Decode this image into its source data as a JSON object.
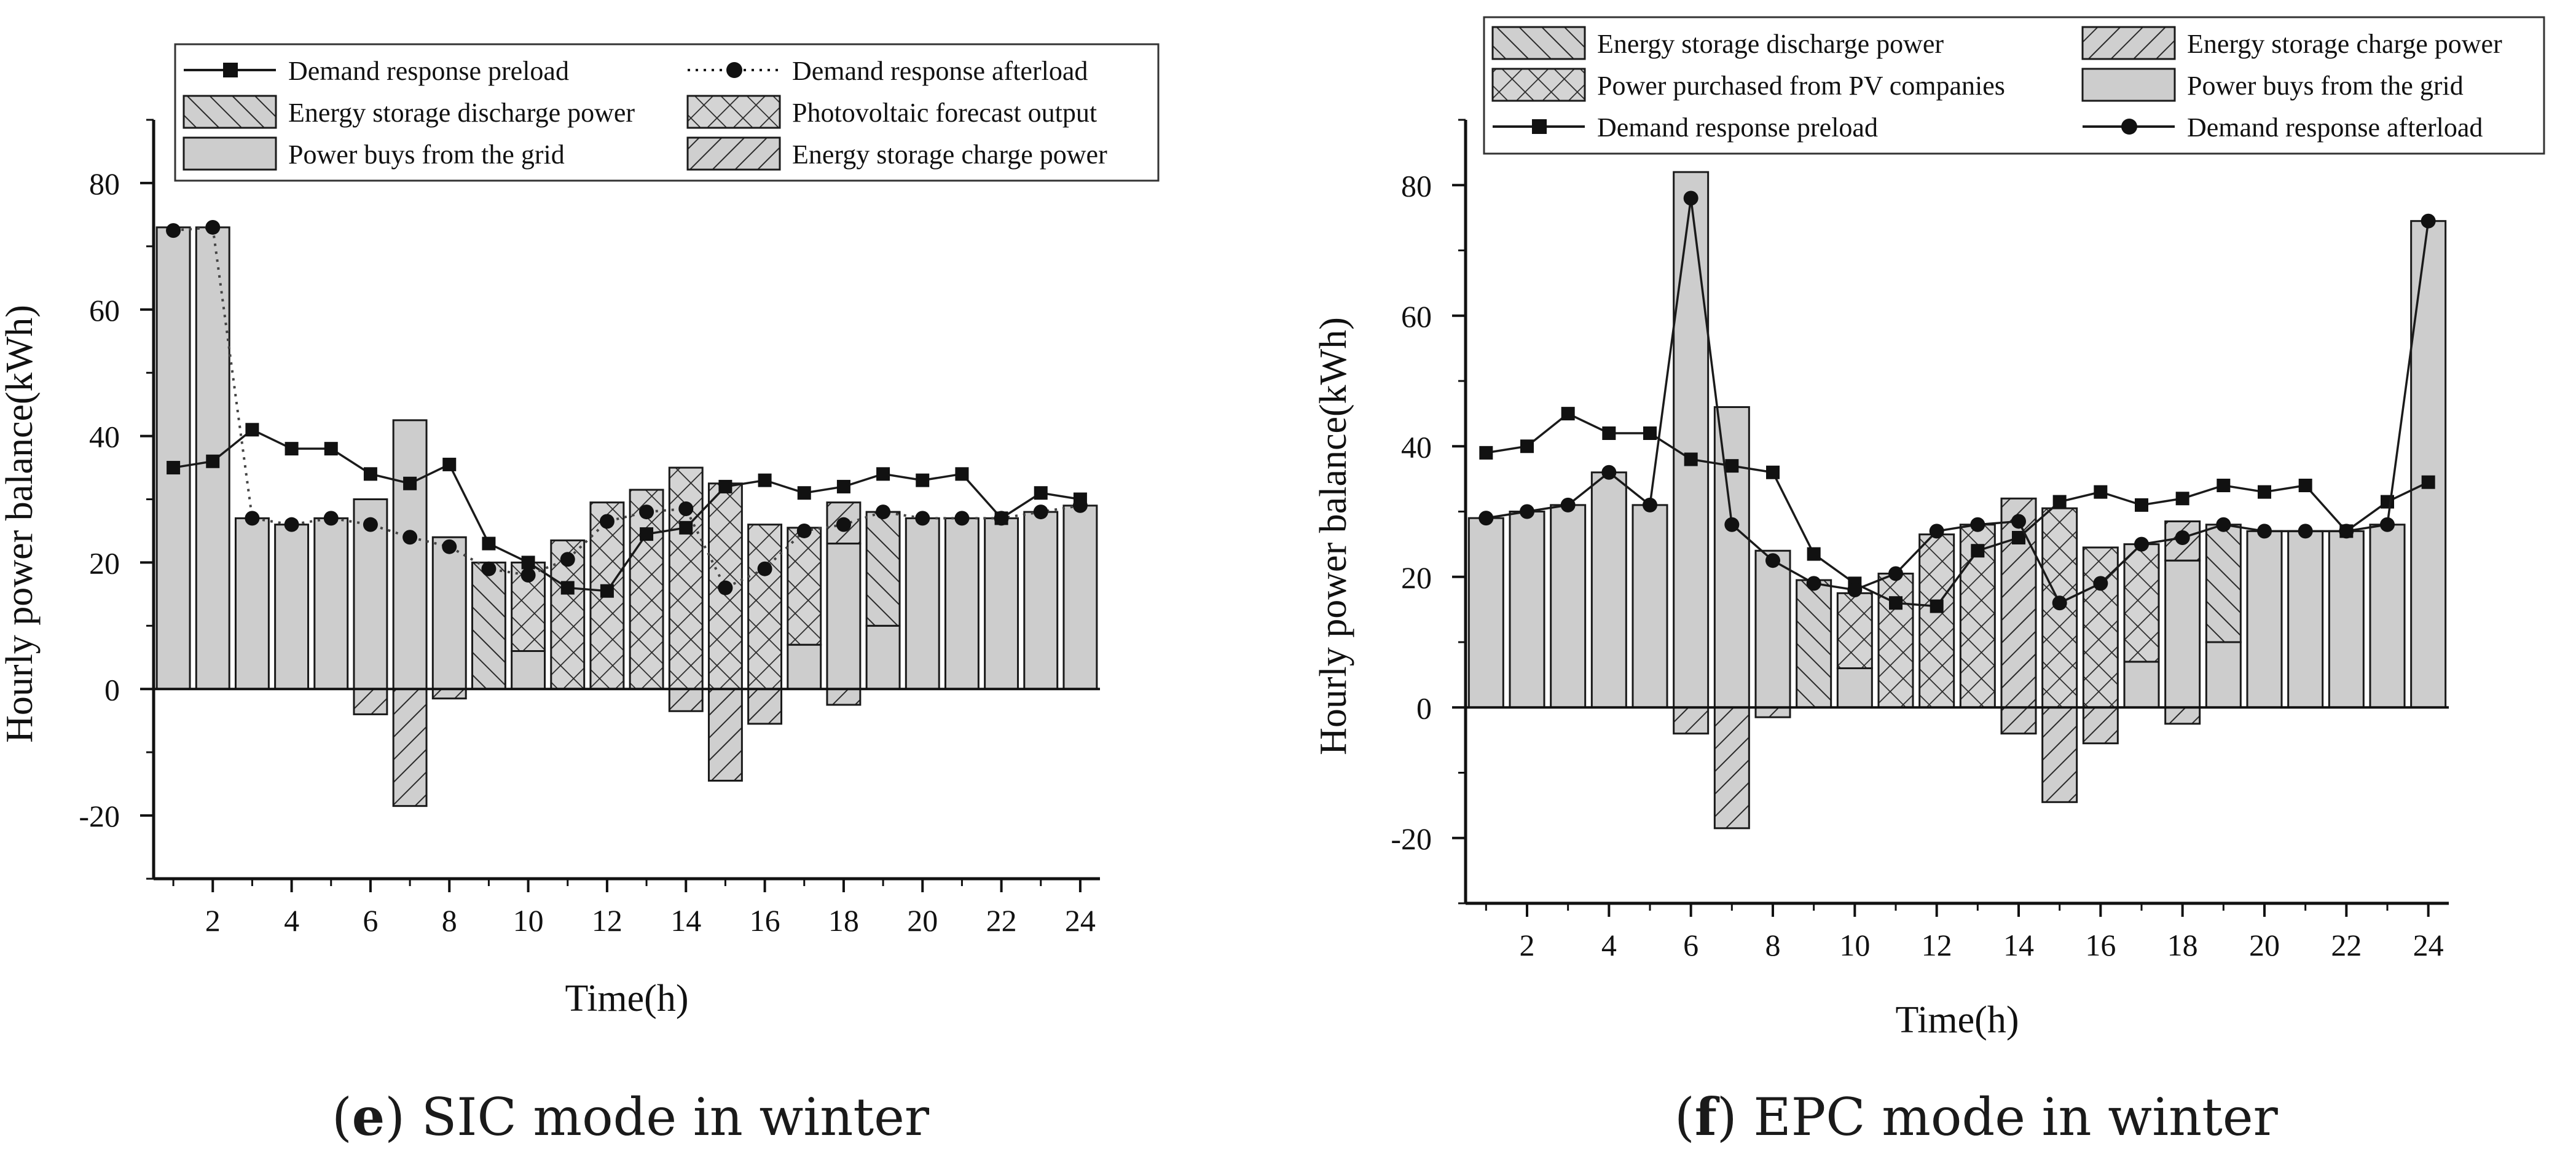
{
  "chart_data": [
    {
      "type": "bar",
      "panel": "left",
      "caption_letter": "e",
      "caption_text": "SIC mode in winter",
      "xlabel": "Time(h)",
      "ylabel": "Hourly power balance(kWh)",
      "xlim": [
        0.5,
        24.5
      ],
      "ylim": [
        -30,
        90
      ],
      "xticks": [
        2,
        4,
        6,
        8,
        10,
        12,
        14,
        16,
        18,
        20,
        22,
        24
      ],
      "yticks": [
        -20,
        0,
        20,
        40,
        60,
        80
      ],
      "legend_position": "top",
      "legend_columns": 2,
      "x": [
        1,
        2,
        3,
        4,
        5,
        6,
        7,
        8,
        9,
        10,
        11,
        12,
        13,
        14,
        15,
        16,
        17,
        18,
        19,
        20,
        21,
        22,
        23,
        24
      ],
      "legend": [
        {
          "key": "preload",
          "label": "Demand response preload"
        },
        {
          "key": "afterload",
          "label": "Demand response afterload"
        },
        {
          "key": "discharge",
          "label": "Energy storage discharge power"
        },
        {
          "key": "pv",
          "label": "Photovoltaic forecast output"
        },
        {
          "key": "grid",
          "label": "Power buys from the grid"
        },
        {
          "key": "charge",
          "label": "Energy storage charge power"
        }
      ],
      "series": [
        {
          "key": "grid",
          "name": "Power buys from the grid",
          "kind": "bar",
          "values": [
            73,
            73,
            27,
            26,
            27,
            30,
            42.5,
            24,
            0,
            6,
            0,
            0,
            0,
            0,
            0,
            0,
            7,
            23,
            10,
            27,
            27,
            27,
            28,
            29
          ]
        },
        {
          "key": "pv",
          "name": "Photovoltaic forecast output",
          "kind": "bar",
          "values": [
            0,
            0,
            0,
            0,
            0,
            0,
            0,
            0,
            0,
            14,
            23.5,
            29.5,
            31.5,
            35,
            32.5,
            26,
            18.5,
            0,
            0,
            0,
            0,
            0,
            0,
            0
          ]
        },
        {
          "key": "discharge",
          "name": "Energy storage discharge power",
          "kind": "bar",
          "values": [
            0,
            0,
            0,
            0,
            0,
            0,
            0,
            0,
            20,
            0,
            0,
            0,
            0,
            0,
            0,
            0,
            0,
            0,
            18,
            0,
            0,
            0,
            0,
            0
          ]
        },
        {
          "key": "charge_up",
          "name": "Energy storage charge power",
          "kind": "bar",
          "values": [
            0,
            0,
            0,
            0,
            0,
            0,
            0,
            0,
            0,
            0,
            0,
            0,
            0,
            0,
            0,
            0,
            0,
            6.5,
            0,
            0,
            0,
            0,
            0,
            0
          ]
        },
        {
          "key": "charge",
          "name": "Energy storage charge power",
          "kind": "bar",
          "values": [
            0,
            0,
            0,
            0,
            0,
            -4,
            -18.5,
            -1.5,
            0,
            0,
            0,
            0,
            0,
            -3.5,
            -14.5,
            -5.5,
            0,
            -2.5,
            0,
            0,
            0,
            0,
            0,
            0
          ]
        },
        {
          "key": "preload",
          "name": "Demand response preload",
          "kind": "line",
          "values": [
            35,
            36,
            41,
            38,
            38,
            34,
            32.5,
            35.5,
            23,
            20,
            16,
            15.5,
            24.5,
            25.5,
            32,
            33,
            31,
            32,
            34,
            33,
            34,
            27,
            31,
            30
          ]
        },
        {
          "key": "afterload",
          "name": "Demand response afterload",
          "kind": "line",
          "values": [
            72.5,
            73,
            27,
            26,
            27,
            26,
            24,
            22.5,
            19,
            18,
            20.5,
            26.5,
            28,
            28.5,
            16,
            19,
            25,
            26,
            28,
            27,
            27,
            27,
            28,
            29
          ]
        }
      ]
    },
    {
      "type": "bar",
      "panel": "right",
      "caption_letter": "f",
      "caption_text": "EPC mode in winter",
      "xlabel": "Time(h)",
      "ylabel": "Hourly power balance(kWh)",
      "xlim": [
        0.5,
        24.5
      ],
      "ylim": [
        -30,
        90
      ],
      "xticks": [
        2,
        4,
        6,
        8,
        10,
        12,
        14,
        16,
        18,
        20,
        22,
        24
      ],
      "yticks": [
        -20,
        0,
        20,
        40,
        60,
        80
      ],
      "legend_position": "top",
      "legend_columns": 2,
      "x": [
        1,
        2,
        3,
        4,
        5,
        6,
        7,
        8,
        9,
        10,
        11,
        12,
        13,
        14,
        15,
        16,
        17,
        18,
        19,
        20,
        21,
        22,
        23,
        24
      ],
      "legend": [
        {
          "key": "discharge",
          "label": "Energy storage discharge power"
        },
        {
          "key": "charge",
          "label": "Energy storage charge power"
        },
        {
          "key": "pv",
          "label": "Power purchased from PV companies"
        },
        {
          "key": "grid",
          "label": "Power buys from the grid"
        },
        {
          "key": "preload",
          "label": "Demand response preload"
        },
        {
          "key": "afterload",
          "label": "Demand response afterload"
        }
      ],
      "series": [
        {
          "key": "grid",
          "name": "Power buys from the grid",
          "kind": "bar",
          "values": [
            29,
            30,
            31,
            36,
            31,
            82,
            46,
            24,
            0,
            6,
            0,
            0,
            0,
            0,
            0,
            0,
            7,
            22.5,
            10,
            27,
            27,
            27,
            28,
            74.5
          ]
        },
        {
          "key": "pv",
          "name": "Power purchased from PV companies",
          "kind": "bar",
          "values": [
            0,
            0,
            0,
            0,
            0,
            0,
            0,
            0,
            0,
            11.5,
            20.5,
            26.5,
            28,
            0,
            30.5,
            24.5,
            18,
            0,
            0,
            0,
            0,
            0,
            0,
            0
          ]
        },
        {
          "key": "discharge",
          "name": "Energy storage discharge power",
          "kind": "bar",
          "values": [
            0,
            0,
            0,
            0,
            0,
            0,
            0,
            0,
            19.5,
            0,
            0,
            0,
            0,
            0,
            0,
            0,
            0,
            0,
            18,
            0,
            0,
            0,
            0,
            0
          ]
        },
        {
          "key": "charge_up",
          "name": "Energy storage charge power",
          "kind": "bar",
          "values": [
            0,
            0,
            0,
            0,
            0,
            0,
            0,
            0,
            0,
            0,
            0,
            0,
            0,
            32,
            0,
            0,
            0,
            6,
            0,
            0,
            0,
            0,
            0,
            0
          ]
        },
        {
          "key": "charge",
          "name": "Energy storage charge power",
          "kind": "bar",
          "values": [
            0,
            0,
            0,
            0,
            0,
            -4,
            -18.5,
            -1.5,
            0,
            0,
            0,
            0,
            0,
            -4,
            -14.5,
            -5.5,
            0,
            -2.5,
            0,
            0,
            0,
            0,
            0,
            0
          ]
        },
        {
          "key": "preload",
          "name": "Demand response preload",
          "kind": "line",
          "values": [
            39,
            40,
            45,
            42,
            42,
            38,
            37,
            36,
            23.5,
            19,
            16,
            15.5,
            24,
            26,
            31.5,
            33,
            31,
            32,
            34,
            33,
            34,
            27,
            31.5,
            34.5
          ]
        },
        {
          "key": "afterload",
          "name": "Demand response afterload",
          "kind": "line",
          "values": [
            29,
            30,
            31,
            36,
            31,
            78,
            28,
            22.5,
            19,
            18,
            20.5,
            27,
            28,
            28.5,
            16,
            19,
            25,
            26,
            28,
            27,
            27,
            27,
            28,
            74.5
          ]
        }
      ]
    }
  ]
}
